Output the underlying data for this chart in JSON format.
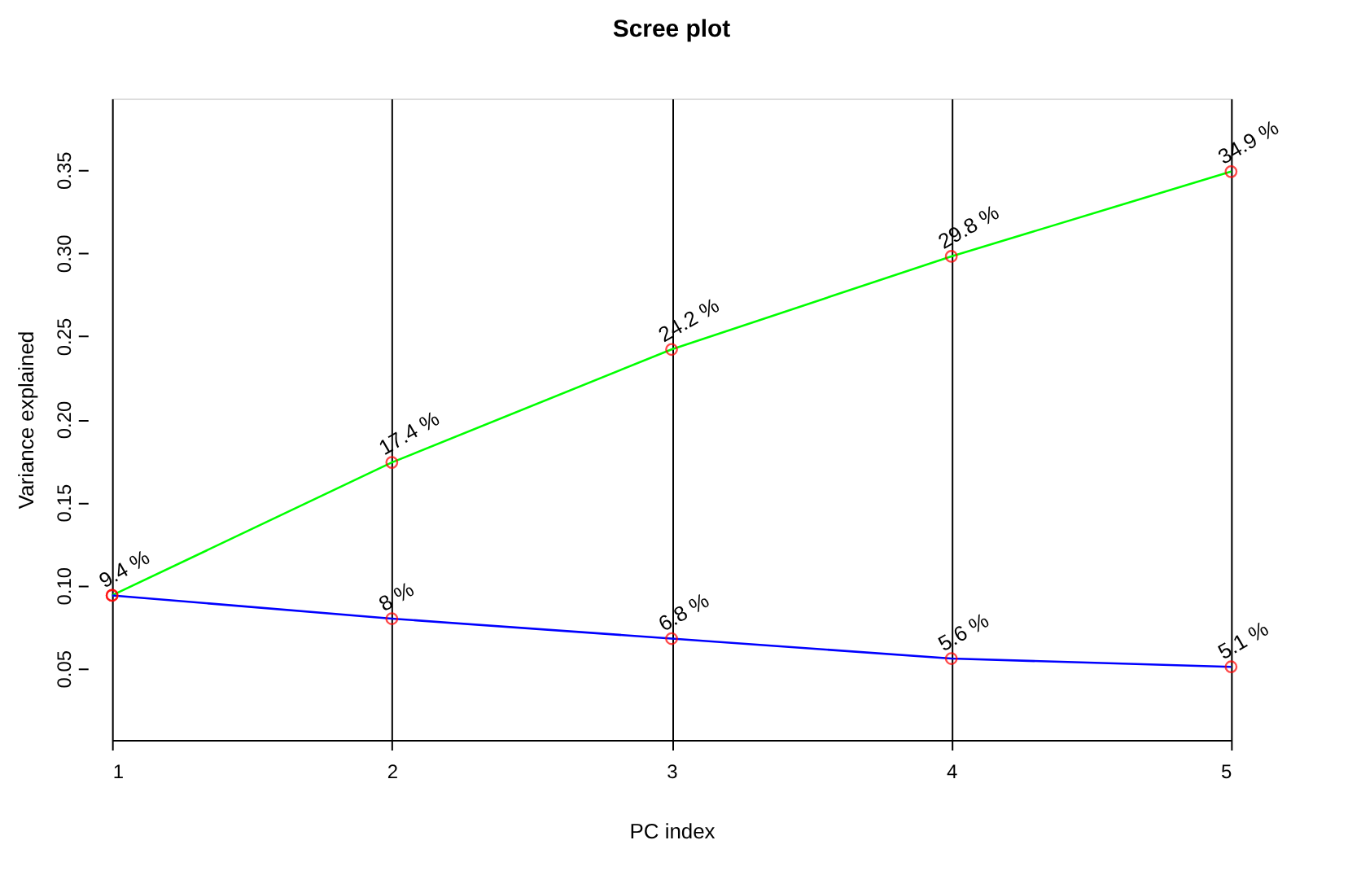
{
  "chart_data": {
    "type": "line",
    "title": "Scree plot",
    "xlabel": "PC index",
    "ylabel": "Variance explained",
    "x": [
      1,
      2,
      3,
      4,
      5
    ],
    "series": [
      {
        "color": "#00ff00",
        "values": [
          0.094,
          0.174,
          0.242,
          0.298,
          0.349
        ],
        "value_labels": [
          "9.4 %",
          "17.4 %",
          "24.2 %",
          "29.8 %",
          "34.9 %"
        ]
      },
      {
        "color": "#0000ff",
        "values": [
          0.094,
          0.08,
          0.068,
          0.056,
          0.051
        ],
        "value_labels": [
          null,
          "8 %",
          "6.8 %",
          "5.6 %",
          "5.1 %"
        ]
      }
    ],
    "xlim": [
      1,
      5
    ],
    "xticks": [
      1,
      2,
      3,
      4,
      5
    ],
    "ylim": [
      0.007,
      0.393
    ],
    "yticks": [
      0.05,
      {
        "value": 0.1,
        "label": "0.10"
      },
      0.15,
      {
        "value": 0.2,
        "label": "0.20"
      },
      0.25,
      {
        "value": 0.3,
        "label": "0.30"
      },
      0.35
    ],
    "grid": "x",
    "marker": "circle",
    "line_style": "solid"
  }
}
